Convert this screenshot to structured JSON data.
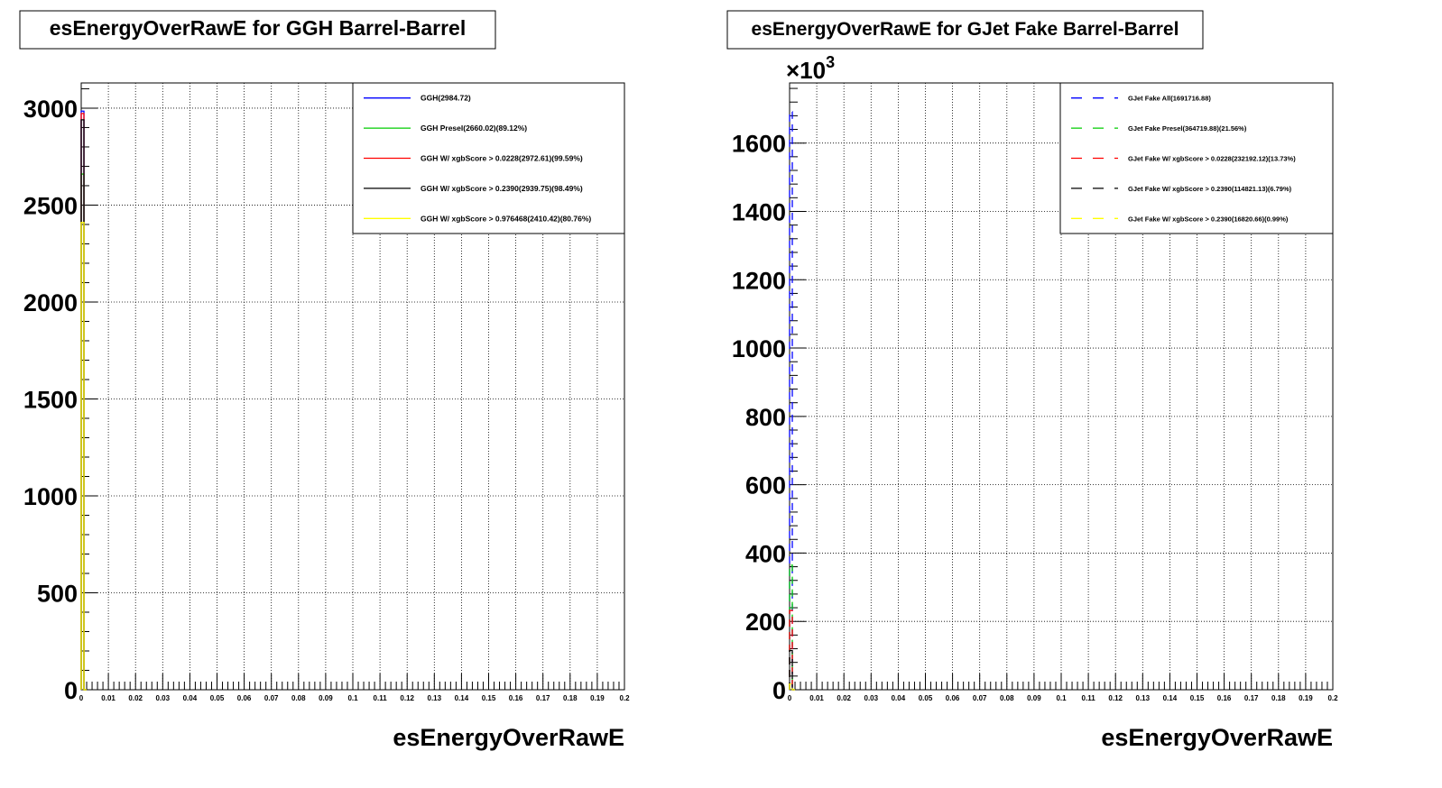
{
  "chart_data": [
    {
      "type": "line",
      "title": "esEnergyOverRawE for GGH Barrel-Barrel",
      "xlabel": "esEnergyOverRawE",
      "ylabel": "",
      "xlim": [
        0,
        0.2
      ],
      "ylim": [
        0,
        3130
      ],
      "y_multiplier": "",
      "grid": true,
      "legend_position": "top-right",
      "x_ticks": [
        "0",
        "0.01",
        "0.02",
        "0.03",
        "0.04",
        "0.05",
        "0.06",
        "0.07",
        "0.08",
        "0.09",
        "0.1",
        "0.11",
        "0.12",
        "0.13",
        "0.14",
        "0.15",
        "0.16",
        "0.17",
        "0.18",
        "0.19",
        "0.2"
      ],
      "y_ticks": [
        0,
        500,
        1000,
        1500,
        2000,
        2500,
        3000
      ],
      "y_tick_labels": [
        "0",
        "500",
        "1000",
        "1500",
        "2000",
        "2500",
        "3000"
      ],
      "series": [
        {
          "name": "GGH(2984.72)",
          "color": "#0000ff",
          "dash": false,
          "x": [
            0,
            0.001
          ],
          "y": [
            2984.72,
            0
          ]
        },
        {
          "name": "GGH Presel(2660.02)(89.12%)",
          "color": "#00cc00",
          "dash": false,
          "x": [
            0,
            0.001
          ],
          "y": [
            2660.02,
            0
          ]
        },
        {
          "name": "GGH W/ xgbScore > 0.0228(2972.61)(99.59%)",
          "color": "#ff0000",
          "dash": false,
          "x": [
            0,
            0.001
          ],
          "y": [
            2972.61,
            0
          ]
        },
        {
          "name": "GGH W/ xgbScore > 0.2390(2939.75)(98.49%)",
          "color": "#000000",
          "dash": false,
          "x": [
            0,
            0.001
          ],
          "y": [
            2939.75,
            0
          ]
        },
        {
          "name": "GGH W/ xgbScore > 0.976468(2410.42)(80.76%)",
          "color": "#ffff00",
          "dash": false,
          "x": [
            0,
            0.001
          ],
          "y": [
            2410.42,
            0
          ]
        }
      ]
    },
    {
      "type": "line",
      "title": "esEnergyOverRawE for GJet Fake Barrel-Barrel",
      "xlabel": "esEnergyOverRawE",
      "ylabel": "",
      "xlim": [
        0,
        0.2
      ],
      "ylim": [
        0,
        1776
      ],
      "y_multiplier": "×10",
      "y_multiplier_exp": "3",
      "grid": true,
      "legend_position": "top-right",
      "x_ticks": [
        "0",
        "0.01",
        "0.02",
        "0.03",
        "0.04",
        "0.05",
        "0.06",
        "0.07",
        "0.08",
        "0.09",
        "0.1",
        "0.11",
        "0.12",
        "0.13",
        "0.14",
        "0.15",
        "0.16",
        "0.17",
        "0.18",
        "0.19",
        "0.2"
      ],
      "y_ticks": [
        0,
        200,
        400,
        600,
        800,
        1000,
        1200,
        1400,
        1600
      ],
      "y_tick_labels": [
        "0",
        "200",
        "400",
        "600",
        "800",
        "1000",
        "1200",
        "1400",
        "1600"
      ],
      "series": [
        {
          "name": "GJet Fake All(1691716.88)",
          "color": "#0000ff",
          "dash": true,
          "x": [
            0,
            0.001
          ],
          "y": [
            1691.71688,
            0
          ]
        },
        {
          "name": "GJet Fake Presel(364719.88)(21.56%)",
          "color": "#00cc00",
          "dash": true,
          "x": [
            0,
            0.001
          ],
          "y": [
            364.71988,
            0
          ]
        },
        {
          "name": "GJet Fake W/ xgbScore > 0.0228(232192.12)(13.73%)",
          "color": "#ff0000",
          "dash": true,
          "x": [
            0,
            0.001
          ],
          "y": [
            232.19212,
            0
          ]
        },
        {
          "name": "GJet Fake W/ xgbScore > 0.2390(114821.13)(6.79%)",
          "color": "#000000",
          "dash": true,
          "x": [
            0,
            0.001
          ],
          "y": [
            114.82113,
            0
          ]
        },
        {
          "name": "GJet Fake W/ xgbScore > 0.2390(16820.66)(0.99%)",
          "color": "#ffff00",
          "dash": true,
          "x": [
            0,
            0.001
          ],
          "y": [
            16.82066,
            0
          ]
        }
      ]
    }
  ]
}
